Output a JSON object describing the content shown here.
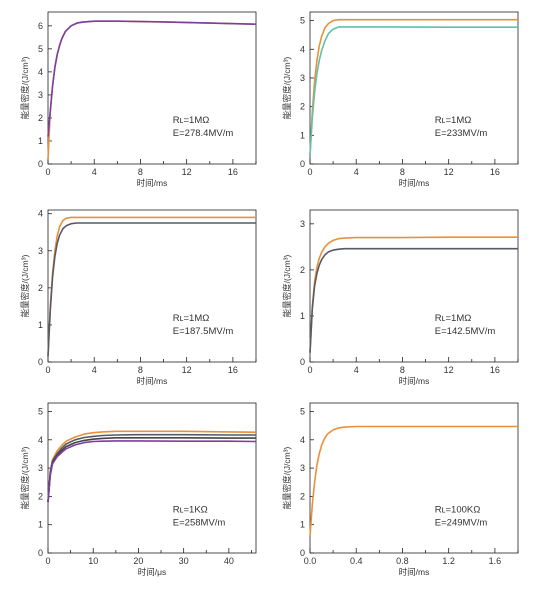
{
  "chart_data": [
    {
      "type": "line",
      "xlabel": "时间/ms",
      "ylabel": "能量密度/(J/cm³)",
      "xlim": [
        0,
        18
      ],
      "ylim": [
        0,
        6.6
      ],
      "xticks": [
        0,
        4,
        8,
        12,
        16
      ],
      "yticks": [
        0,
        1,
        2,
        3,
        4,
        5,
        6
      ],
      "annotations": [
        "Rʟ=1MΩ",
        "E=278.4MV/m"
      ],
      "series": [
        {
          "color": "#e8903a",
          "x": [
            0,
            0.2,
            0.4,
            0.6,
            0.8,
            1.0,
            1.2,
            1.5,
            2.0,
            2.5,
            3.0,
            4.0,
            6.0,
            10.0,
            14.0,
            18.0
          ],
          "y": [
            0.2,
            2.3,
            3.4,
            4.2,
            4.75,
            5.15,
            5.45,
            5.75,
            6.0,
            6.12,
            6.16,
            6.2,
            6.2,
            6.17,
            6.12,
            6.07
          ]
        },
        {
          "color": "#7b3fa0",
          "x": [
            0,
            0.2,
            0.4,
            0.6,
            0.8,
            1.0,
            1.2,
            1.5,
            2.0,
            2.5,
            3.0,
            4.0,
            6.0,
            10.0,
            14.0,
            18.0
          ],
          "y": [
            1.2,
            2.3,
            3.4,
            4.2,
            4.75,
            5.15,
            5.45,
            5.75,
            6.0,
            6.12,
            6.16,
            6.2,
            6.2,
            6.17,
            6.12,
            6.07
          ]
        }
      ]
    },
    {
      "type": "line",
      "xlabel": "时间/ms",
      "ylabel": "能量密度/(J/cm³)",
      "xlim": [
        0,
        18
      ],
      "ylim": [
        0,
        5.3
      ],
      "xticks": [
        0,
        4,
        8,
        12,
        16
      ],
      "yticks": [
        0,
        1,
        2,
        3,
        4,
        5
      ],
      "annotations": [
        "Rʟ=1MΩ",
        "E=233MV/m"
      ],
      "series": [
        {
          "color": "#e8903a",
          "x": [
            0,
            0.2,
            0.4,
            0.6,
            0.8,
            1.0,
            1.3,
            1.6,
            2.0,
            2.5,
            3.0,
            6.0,
            12.0,
            18.0
          ],
          "y": [
            0.3,
            1.8,
            2.9,
            3.6,
            4.1,
            4.45,
            4.75,
            4.9,
            5.0,
            5.03,
            5.03,
            5.03,
            5.03,
            5.03
          ]
        },
        {
          "color": "#5fc1a8",
          "x": [
            0,
            0.2,
            0.4,
            0.6,
            0.8,
            1.0,
            1.3,
            1.6,
            2.0,
            2.5,
            3.0,
            6.0,
            12.0,
            18.0
          ],
          "y": [
            0.3,
            1.6,
            2.5,
            3.15,
            3.6,
            3.95,
            4.3,
            4.55,
            4.7,
            4.78,
            4.78,
            4.78,
            4.77,
            4.77
          ]
        }
      ]
    },
    {
      "type": "line",
      "xlabel": "时间/ms",
      "ylabel": "能量密度/(J/cm³)",
      "xlim": [
        0,
        18
      ],
      "ylim": [
        0,
        4.1
      ],
      "xticks": [
        0,
        4,
        8,
        12,
        16
      ],
      "yticks": [
        0,
        1,
        2,
        3,
        4
      ],
      "annotations": [
        "Rʟ=1MΩ",
        "E=187.5MV/m"
      ],
      "series": [
        {
          "color": "#e8903a",
          "x": [
            0,
            0.2,
            0.4,
            0.6,
            0.8,
            1.0,
            1.3,
            1.6,
            2.0,
            2.5,
            3.0,
            6.0,
            12.0,
            18.0
          ],
          "y": [
            0.15,
            1.5,
            2.4,
            3.0,
            3.4,
            3.65,
            3.82,
            3.88,
            3.9,
            3.9,
            3.9,
            3.9,
            3.9,
            3.9
          ]
        },
        {
          "color": "#555a66",
          "x": [
            0,
            0.2,
            0.4,
            0.6,
            0.8,
            1.0,
            1.3,
            1.6,
            2.0,
            2.5,
            3.0,
            6.0,
            12.0,
            18.0
          ],
          "y": [
            0.15,
            1.4,
            2.3,
            2.85,
            3.2,
            3.42,
            3.6,
            3.68,
            3.73,
            3.75,
            3.75,
            3.75,
            3.75,
            3.75
          ]
        }
      ]
    },
    {
      "type": "line",
      "xlabel": "时间/ms",
      "ylabel": "能量密度/(J/cm³)",
      "xlim": [
        0,
        18
      ],
      "ylim": [
        0,
        3.3
      ],
      "xticks": [
        0,
        4,
        8,
        12,
        16
      ],
      "yticks": [
        0,
        1,
        2,
        3
      ],
      "annotations": [
        "Rʟ=1MΩ",
        "E=142.5MV/m"
      ],
      "series": [
        {
          "color": "#e8903a",
          "x": [
            0,
            0.2,
            0.4,
            0.6,
            0.8,
            1.0,
            1.3,
            1.6,
            2.0,
            2.5,
            3.0,
            4.0,
            8.0,
            12.0,
            18.0
          ],
          "y": [
            0.2,
            1.2,
            1.75,
            2.05,
            2.25,
            2.38,
            2.5,
            2.58,
            2.64,
            2.68,
            2.69,
            2.7,
            2.7,
            2.71,
            2.71
          ]
        },
        {
          "color": "#555a66",
          "x": [
            0,
            0.2,
            0.4,
            0.6,
            0.8,
            1.0,
            1.3,
            1.6,
            2.0,
            2.5,
            3.0,
            4.0,
            8.0,
            12.0,
            18.0
          ],
          "y": [
            0.2,
            1.15,
            1.65,
            1.92,
            2.1,
            2.22,
            2.33,
            2.39,
            2.43,
            2.45,
            2.46,
            2.46,
            2.46,
            2.46,
            2.46
          ]
        }
      ]
    },
    {
      "type": "line",
      "xlabel": "时间/μs",
      "ylabel": "能量密度/(J/cm³)",
      "xlim": [
        0,
        46
      ],
      "ylim": [
        0,
        5.3
      ],
      "xticks": [
        0,
        10,
        20,
        30,
        40
      ],
      "yticks": [
        0,
        1,
        2,
        3,
        4,
        5
      ],
      "annotations": [
        "Rʟ=1KΩ",
        "E=258MV/m"
      ],
      "series": [
        {
          "color": "#e8903a",
          "x": [
            0,
            0.5,
            1,
            2,
            3,
            4,
            6,
            8,
            10,
            12,
            15,
            20,
            30,
            40,
            46
          ],
          "y": [
            1.8,
            2.9,
            3.3,
            3.6,
            3.8,
            3.95,
            4.1,
            4.2,
            4.25,
            4.28,
            4.3,
            4.3,
            4.3,
            4.28,
            4.27
          ]
        },
        {
          "color": "#555a66",
          "x": [
            0,
            0.5,
            1,
            2,
            3,
            4,
            6,
            8,
            10,
            12,
            15,
            20,
            30,
            40,
            46
          ],
          "y": [
            1.8,
            2.85,
            3.25,
            3.5,
            3.7,
            3.85,
            4.0,
            4.08,
            4.12,
            4.15,
            4.17,
            4.18,
            4.18,
            4.17,
            4.17
          ]
        },
        {
          "color": "#444444",
          "x": [
            0,
            0.5,
            1,
            2,
            3,
            4,
            6,
            8,
            10,
            12,
            15,
            20,
            30,
            40,
            46
          ],
          "y": [
            1.8,
            2.8,
            3.2,
            3.45,
            3.62,
            3.76,
            3.9,
            3.98,
            4.02,
            4.05,
            4.07,
            4.07,
            4.07,
            4.06,
            4.06
          ]
        },
        {
          "color": "#7b3fa0",
          "x": [
            0,
            0.5,
            1,
            2,
            3,
            4,
            6,
            8,
            10,
            12,
            15,
            20,
            30,
            40,
            46
          ],
          "y": [
            1.8,
            2.75,
            3.15,
            3.4,
            3.55,
            3.68,
            3.82,
            3.9,
            3.94,
            3.95,
            3.96,
            3.96,
            3.95,
            3.95,
            3.94
          ]
        }
      ]
    },
    {
      "type": "line",
      "xlabel": "时间/ms",
      "ylabel": "能量密度/(J/cm³)",
      "xlim": [
        0,
        1.8
      ],
      "ylim": [
        0,
        5.3
      ],
      "xticks": [
        0.0,
        0.4,
        0.8,
        1.2,
        1.6
      ],
      "yticks": [
        0,
        1,
        2,
        3,
        4,
        5
      ],
      "annotations": [
        "Rʟ=100KΩ",
        "E=249MV/m"
      ],
      "series": [
        {
          "color": "#e8903a",
          "x": [
            0,
            0.02,
            0.04,
            0.06,
            0.08,
            0.1,
            0.12,
            0.15,
            0.2,
            0.25,
            0.3,
            0.4,
            0.6,
            1.0,
            1.4,
            1.8
          ],
          "y": [
            0.6,
            1.7,
            2.5,
            3.1,
            3.5,
            3.8,
            4.0,
            4.2,
            4.35,
            4.42,
            4.45,
            4.47,
            4.47,
            4.47,
            4.47,
            4.47
          ]
        }
      ]
    }
  ]
}
